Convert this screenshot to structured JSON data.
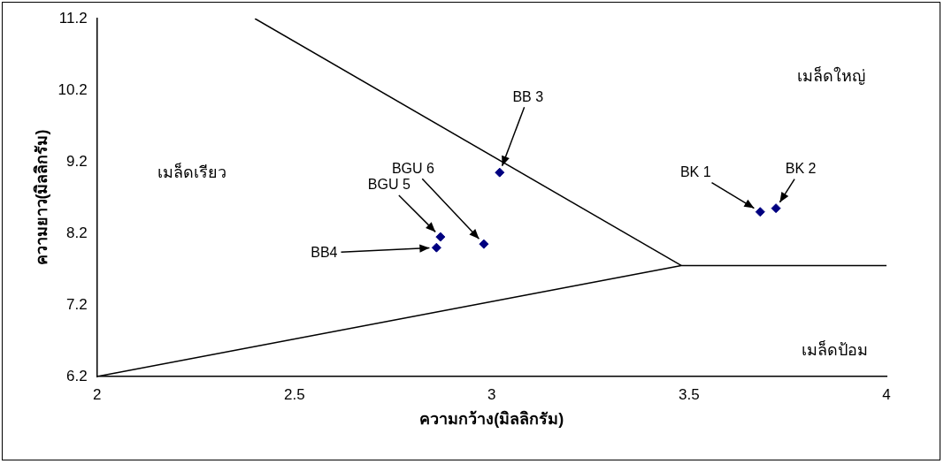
{
  "chart_data": {
    "type": "scatter",
    "x_label": "ความกว้าง(มิลลิกรัม)",
    "y_label": "ความยาว(มิลลิกรัม)",
    "xlim": [
      2,
      4
    ],
    "ylim": [
      6.2,
      11.2
    ],
    "xticks": [
      2,
      2.5,
      3,
      3.5,
      4
    ],
    "yticks": [
      6.2,
      7.2,
      8.2,
      9.2,
      10.2,
      11.2
    ],
    "grid": false,
    "tick_labels": true,
    "marker": "diamond",
    "color": "#000080",
    "points": [
      {
        "label": "BB 3",
        "x": 3.02,
        "y": 9.05
      },
      {
        "label": "BGU 5",
        "x": 2.87,
        "y": 8.15
      },
      {
        "label": "BB4",
        "x": 2.86,
        "y": 8.0
      },
      {
        "label": "BGU 6",
        "x": 2.98,
        "y": 8.05
      },
      {
        "label": "BK 1",
        "x": 3.68,
        "y": 8.5
      },
      {
        "label": "BK 2",
        "x": 3.72,
        "y": 8.55
      }
    ],
    "lines": [
      {
        "x": [
          2.4,
          3.48
        ],
        "y": [
          11.2,
          7.75
        ],
        "color": "#000000"
      },
      {
        "x": [
          2,
          3.48
        ],
        "y": [
          6.2,
          7.75
        ],
        "color": "#000000"
      },
      {
        "x": [
          3.48,
          4
        ],
        "y": [
          7.75,
          7.75
        ],
        "color": "#000000"
      }
    ],
    "region_labels": [
      {
        "text": "เมล็ดใหญ่",
        "x": 3.86,
        "y": 10.39
      },
      {
        "text": "เมล็ดเรียว",
        "x": 2.24,
        "y": 9.04
      },
      {
        "text": "เมล็ดป้อม",
        "x": 3.87,
        "y": 6.56
      }
    ]
  }
}
